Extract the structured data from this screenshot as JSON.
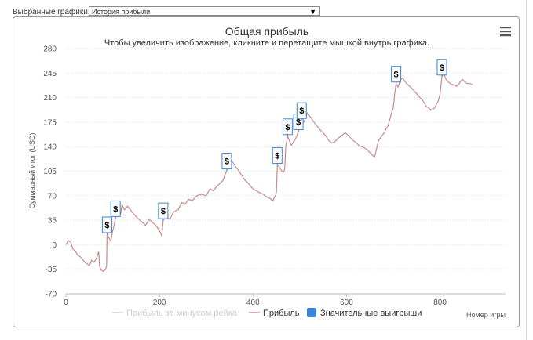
{
  "header": {
    "selector_label": "Выбранные графики:",
    "selected_chart": "История прибыли"
  },
  "menu": {
    "icon": "menu-icon"
  },
  "chart_data": {
    "type": "line",
    "title": "Общая прибыль",
    "subtitle": "Чтобы увеличить изображение, кликните и перетащите мышкой внутрь графика.",
    "xlabel": "Номер игры",
    "ylabel": "Суммарный итог (USD)",
    "xlim": [
      0,
      940
    ],
    "ylim": [
      -70,
      280
    ],
    "x_ticks": [
      0,
      200,
      400,
      600,
      800
    ],
    "y_ticks": [
      -70,
      -35,
      0,
      35,
      70,
      105,
      140,
      175,
      210,
      245,
      280
    ],
    "grid": "horizontal dotted",
    "legend_position": "bottom",
    "legend": [
      {
        "name": "Прибыль за минусом рейка",
        "color": "#cccccc"
      },
      {
        "name": "Прибыль",
        "color": "#c98b8b"
      },
      {
        "name": "Значительные выигрыши",
        "color": "#3b84d6"
      }
    ],
    "series": [
      {
        "name": "Прибыль",
        "color": "#c98b8b",
        "points": [
          [
            0,
            0
          ],
          [
            5,
            6
          ],
          [
            10,
            4
          ],
          [
            15,
            -6
          ],
          [
            20,
            -9
          ],
          [
            25,
            -15
          ],
          [
            30,
            -17
          ],
          [
            35,
            -20
          ],
          [
            40,
            -25
          ],
          [
            45,
            -27
          ],
          [
            50,
            -30
          ],
          [
            55,
            -22
          ],
          [
            60,
            -25
          ],
          [
            65,
            -20
          ],
          [
            70,
            -10
          ],
          [
            72,
            -30
          ],
          [
            75,
            -36
          ],
          [
            80,
            -38
          ],
          [
            85,
            -35
          ],
          [
            87,
            -30
          ],
          [
            88,
            15
          ],
          [
            92,
            10
          ],
          [
            96,
            5
          ],
          [
            100,
            20
          ],
          [
            103,
            28
          ],
          [
            106,
            38
          ],
          [
            108,
            45
          ],
          [
            110,
            41
          ],
          [
            113,
            50
          ],
          [
            117,
            44
          ],
          [
            120,
            57
          ],
          [
            125,
            50
          ],
          [
            132,
            55
          ],
          [
            140,
            48
          ],
          [
            150,
            40
          ],
          [
            158,
            35
          ],
          [
            165,
            31
          ],
          [
            170,
            28
          ],
          [
            178,
            36
          ],
          [
            185,
            32
          ],
          [
            192,
            28
          ],
          [
            200,
            20
          ],
          [
            205,
            13
          ],
          [
            208,
            35
          ],
          [
            215,
            40
          ],
          [
            222,
            36
          ],
          [
            230,
            47
          ],
          [
            240,
            50
          ],
          [
            248,
            60
          ],
          [
            255,
            58
          ],
          [
            262,
            65
          ],
          [
            270,
            63
          ],
          [
            280,
            70
          ],
          [
            290,
            72
          ],
          [
            300,
            70
          ],
          [
            308,
            80
          ],
          [
            315,
            77
          ],
          [
            322,
            83
          ],
          [
            330,
            88
          ],
          [
            336,
            92
          ],
          [
            340,
            100
          ],
          [
            344,
            106
          ],
          [
            348,
            112
          ],
          [
            352,
            117
          ],
          [
            357,
            118
          ],
          [
            362,
            112
          ],
          [
            368,
            107
          ],
          [
            375,
            100
          ],
          [
            382,
            93
          ],
          [
            392,
            86
          ],
          [
            400,
            80
          ],
          [
            412,
            75
          ],
          [
            422,
            72
          ],
          [
            430,
            68
          ],
          [
            437,
            66
          ],
          [
            440,
            64
          ],
          [
            443,
            63
          ],
          [
            446,
            68
          ],
          [
            448,
            70
          ],
          [
            450,
            75
          ],
          [
            452,
            114
          ],
          [
            456,
            111
          ],
          [
            462,
            105
          ],
          [
            466,
            104
          ],
          [
            468,
            110
          ],
          [
            470,
            140
          ],
          [
            474,
            155
          ],
          [
            478,
            148
          ],
          [
            482,
            142
          ],
          [
            486,
            146
          ],
          [
            490,
            150
          ],
          [
            494,
            156
          ],
          [
            497,
            162
          ],
          [
            500,
            166
          ],
          [
            504,
            178
          ],
          [
            508,
            175
          ],
          [
            512,
            180
          ],
          [
            516,
            188
          ],
          [
            520,
            185
          ],
          [
            528,
            177
          ],
          [
            536,
            170
          ],
          [
            545,
            163
          ],
          [
            555,
            156
          ],
          [
            562,
            149
          ],
          [
            568,
            145
          ],
          [
            575,
            147
          ],
          [
            582,
            152
          ],
          [
            590,
            156
          ],
          [
            597,
            160
          ],
          [
            604,
            156
          ],
          [
            612,
            150
          ],
          [
            620,
            146
          ],
          [
            628,
            141
          ],
          [
            636,
            139
          ],
          [
            644,
            136
          ],
          [
            652,
            130
          ],
          [
            660,
            125
          ],
          [
            668,
            148
          ],
          [
            675,
            155
          ],
          [
            681,
            160
          ],
          [
            685,
            166
          ],
          [
            689,
            170
          ],
          [
            693,
            180
          ],
          [
            697,
            190
          ],
          [
            700,
            195
          ],
          [
            703,
            215
          ],
          [
            706,
            230
          ],
          [
            710,
            225
          ],
          [
            715,
            235
          ],
          [
            720,
            238
          ],
          [
            726,
            232
          ],
          [
            732,
            228
          ],
          [
            740,
            223
          ],
          [
            748,
            217
          ],
          [
            756,
            211
          ],
          [
            764,
            205
          ],
          [
            770,
            198
          ],
          [
            776,
            195
          ],
          [
            782,
            192
          ],
          [
            788,
            195
          ],
          [
            792,
            200
          ],
          [
            796,
            205
          ],
          [
            800,
            215
          ],
          [
            804,
            240
          ],
          [
            808,
            245
          ],
          [
            812,
            237
          ],
          [
            818,
            232
          ],
          [
            824,
            229
          ],
          [
            830,
            228
          ],
          [
            836,
            226
          ],
          [
            842,
            231
          ],
          [
            848,
            236
          ],
          [
            852,
            233
          ],
          [
            858,
            230
          ],
          [
            864,
            230
          ],
          [
            870,
            228
          ]
        ]
      }
    ],
    "markers": {
      "name": "Значительные выигрыши",
      "label": "$",
      "points": [
        [
          88,
          15
        ],
        [
          106,
          38
        ],
        [
          208,
          35
        ],
        [
          344,
          106
        ],
        [
          452,
          114
        ],
        [
          474,
          155
        ],
        [
          497,
          162
        ],
        [
          504,
          178
        ],
        [
          706,
          230
        ],
        [
          804,
          240
        ]
      ]
    }
  },
  "colors": {
    "line": "#c98b8b",
    "marker_border": "#3b84d6",
    "grid": "#dddddd"
  }
}
